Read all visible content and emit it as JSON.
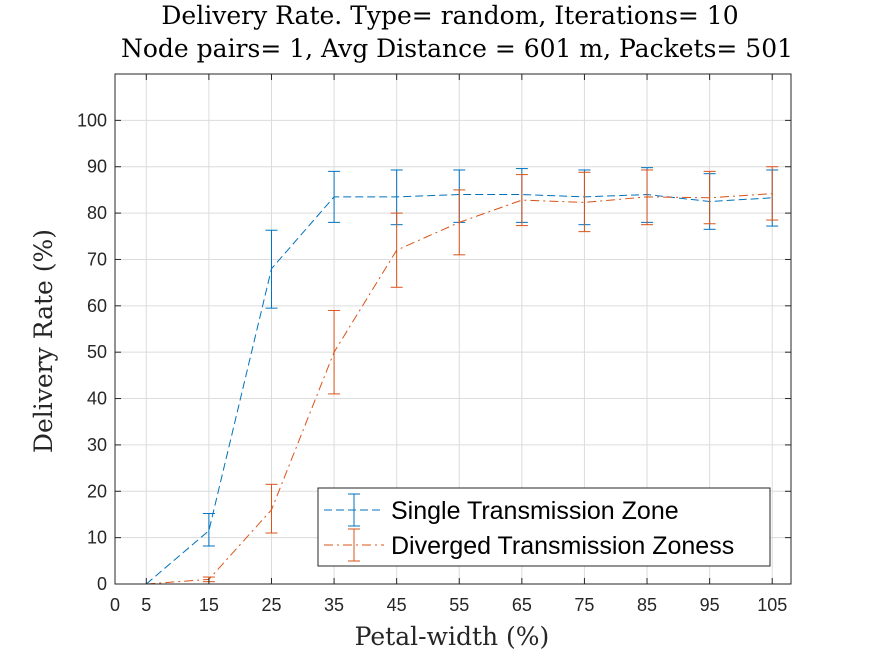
{
  "chart_data": {
    "type": "line",
    "title_lines": [
      "Delivery Rate. Type= random, Iterations= 10",
      "Node pairs= 1, Avg Distance = 601 m, Packets= 501"
    ],
    "xlabel": "Petal-width (%)",
    "ylabel": "Delivery Rate (%)",
    "xlim": [
      0,
      108
    ],
    "ylim": [
      0,
      110
    ],
    "x_ticks": [
      0,
      5,
      15,
      25,
      35,
      45,
      55,
      65,
      75,
      85,
      95,
      105
    ],
    "y_ticks": [
      0,
      10,
      20,
      30,
      40,
      50,
      60,
      70,
      80,
      90,
      100
    ],
    "grid": true,
    "legend_position": "bottom-right",
    "x": [
      5,
      15,
      25,
      35,
      45,
      55,
      65,
      75,
      85,
      95,
      105
    ],
    "series": [
      {
        "name": "Single Transmission Zone",
        "color": "#0072BD",
        "line_style": "dashed",
        "values": [
          0,
          11.5,
          68,
          83.5,
          83.5,
          84,
          84,
          83.5,
          84,
          82.5,
          83.3
        ],
        "err_lower": [
          0,
          8.2,
          59.5,
          78,
          77.5,
          78,
          78,
          77.5,
          78,
          76.5,
          77.2
        ],
        "err_upper": [
          0,
          15.2,
          76.3,
          89,
          89.3,
          89.3,
          89.6,
          89.3,
          89.8,
          88.5,
          89.3
        ]
      },
      {
        "name": "Diverged Transmission Zoness",
        "color": "#D95319",
        "line_style": "dashdot",
        "values": [
          0,
          1,
          16,
          50,
          72,
          78,
          82.8,
          82.3,
          83.5,
          83.3,
          84.2
        ],
        "err_lower": [
          0,
          0.5,
          11,
          41,
          64,
          71,
          77.3,
          76,
          77.5,
          77.7,
          78.5
        ],
        "err_upper": [
          0,
          1.5,
          21.5,
          59,
          80,
          85,
          88.3,
          88.8,
          89.3,
          89,
          90
        ]
      }
    ]
  }
}
